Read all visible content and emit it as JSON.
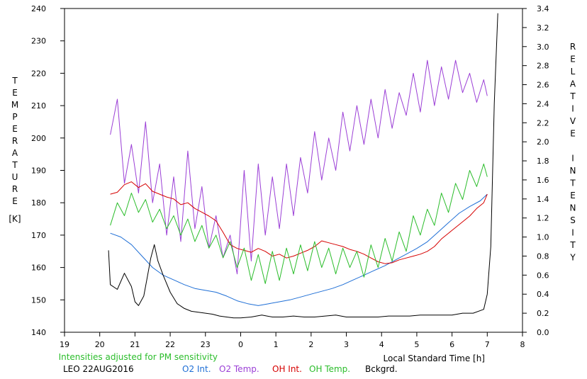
{
  "chart_data": {
    "type": "line",
    "title": "",
    "station_date": "LEO 22AUG2016",
    "note": "Intensities adjusted for PM sensitivity",
    "xlabel": "Local Standard Time [h]",
    "ylabel_left": "TEMPERATURE",
    "ylabel_left_unit": "[K]",
    "ylabel_right": "RELATIVE INTENSITY",
    "x_ticks": [
      "19",
      "20",
      "21",
      "22",
      "23",
      "0",
      "1",
      "2",
      "3",
      "4",
      "5",
      "6",
      "7",
      "8"
    ],
    "x_range": [
      19,
      32
    ],
    "y_left_range": [
      140,
      240
    ],
    "y_left_ticks": [
      "140",
      "150",
      "160",
      "170",
      "180",
      "190",
      "200",
      "210",
      "220",
      "230",
      "240"
    ],
    "y_right_range": [
      0.0,
      3.4
    ],
    "y_right_ticks": [
      "0.0",
      "0.2",
      "0.4",
      "0.6",
      "0.8",
      "1.0",
      "1.2",
      "1.4",
      "1.6",
      "1.8",
      "2.0",
      "2.2",
      "2.4",
      "2.6",
      "2.8",
      "3.0",
      "3.2",
      "3.4"
    ],
    "grid": false,
    "legend_placement": "bottom",
    "series": [
      {
        "name": "O2 Int.",
        "color": "#1f6fd6",
        "axis": "right",
        "points": [
          [
            20.3,
            1.04
          ],
          [
            20.6,
            1.0
          ],
          [
            20.9,
            0.92
          ],
          [
            21.2,
            0.8
          ],
          [
            21.5,
            0.68
          ],
          [
            21.8,
            0.6
          ],
          [
            22.1,
            0.55
          ],
          [
            22.4,
            0.5
          ],
          [
            22.7,
            0.46
          ],
          [
            23.0,
            0.44
          ],
          [
            23.3,
            0.42
          ],
          [
            23.6,
            0.38
          ],
          [
            23.9,
            0.33
          ],
          [
            24.2,
            0.3
          ],
          [
            24.5,
            0.28
          ],
          [
            24.8,
            0.3
          ],
          [
            25.1,
            0.32
          ],
          [
            25.4,
            0.34
          ],
          [
            25.7,
            0.37
          ],
          [
            26.0,
            0.4
          ],
          [
            26.3,
            0.43
          ],
          [
            26.6,
            0.46
          ],
          [
            26.9,
            0.5
          ],
          [
            27.2,
            0.55
          ],
          [
            27.5,
            0.6
          ],
          [
            27.8,
            0.65
          ],
          [
            28.1,
            0.7
          ],
          [
            28.4,
            0.76
          ],
          [
            28.7,
            0.82
          ],
          [
            29.0,
            0.88
          ],
          [
            29.3,
            0.95
          ],
          [
            29.6,
            1.05
          ],
          [
            29.9,
            1.15
          ],
          [
            30.2,
            1.25
          ],
          [
            30.5,
            1.32
          ],
          [
            30.8,
            1.38
          ],
          [
            31.0,
            1.45
          ]
        ]
      },
      {
        "name": "O2 Temp.",
        "color": "#9b3fd6",
        "axis": "left",
        "points": [
          [
            20.3,
            201
          ],
          [
            20.5,
            212
          ],
          [
            20.7,
            186
          ],
          [
            20.9,
            198
          ],
          [
            21.1,
            183
          ],
          [
            21.3,
            205
          ],
          [
            21.5,
            180
          ],
          [
            21.7,
            192
          ],
          [
            21.9,
            170
          ],
          [
            22.1,
            188
          ],
          [
            22.3,
            168
          ],
          [
            22.5,
            196
          ],
          [
            22.7,
            172
          ],
          [
            22.9,
            185
          ],
          [
            23.1,
            166
          ],
          [
            23.3,
            176
          ],
          [
            23.5,
            163
          ],
          [
            23.7,
            170
          ],
          [
            23.9,
            158
          ],
          [
            24.1,
            190
          ],
          [
            24.3,
            162
          ],
          [
            24.5,
            192
          ],
          [
            24.7,
            170
          ],
          [
            24.9,
            188
          ],
          [
            25.1,
            172
          ],
          [
            25.3,
            192
          ],
          [
            25.5,
            176
          ],
          [
            25.7,
            194
          ],
          [
            25.9,
            183
          ],
          [
            26.1,
            202
          ],
          [
            26.3,
            187
          ],
          [
            26.5,
            200
          ],
          [
            26.7,
            190
          ],
          [
            26.9,
            208
          ],
          [
            27.1,
            196
          ],
          [
            27.3,
            210
          ],
          [
            27.5,
            198
          ],
          [
            27.7,
            212
          ],
          [
            27.9,
            200
          ],
          [
            28.1,
            215
          ],
          [
            28.3,
            203
          ],
          [
            28.5,
            214
          ],
          [
            28.7,
            207
          ],
          [
            28.9,
            220
          ],
          [
            29.1,
            208
          ],
          [
            29.3,
            224
          ],
          [
            29.5,
            210
          ],
          [
            29.7,
            222
          ],
          [
            29.9,
            212
          ],
          [
            30.1,
            224
          ],
          [
            30.3,
            214
          ],
          [
            30.5,
            220
          ],
          [
            30.7,
            211
          ],
          [
            30.9,
            218
          ],
          [
            31.0,
            213
          ]
        ]
      },
      {
        "name": "OH Int.",
        "color": "#d60000",
        "axis": "right",
        "points": [
          [
            20.3,
            1.45
          ],
          [
            20.5,
            1.47
          ],
          [
            20.7,
            1.55
          ],
          [
            20.9,
            1.58
          ],
          [
            21.1,
            1.52
          ],
          [
            21.3,
            1.56
          ],
          [
            21.5,
            1.48
          ],
          [
            21.7,
            1.45
          ],
          [
            21.9,
            1.42
          ],
          [
            22.1,
            1.4
          ],
          [
            22.3,
            1.34
          ],
          [
            22.5,
            1.36
          ],
          [
            22.7,
            1.3
          ],
          [
            22.9,
            1.26
          ],
          [
            23.1,
            1.22
          ],
          [
            23.3,
            1.17
          ],
          [
            23.5,
            1.05
          ],
          [
            23.7,
            0.92
          ],
          [
            23.9,
            0.88
          ],
          [
            24.1,
            0.86
          ],
          [
            24.3,
            0.84
          ],
          [
            24.5,
            0.88
          ],
          [
            24.7,
            0.85
          ],
          [
            24.9,
            0.8
          ],
          [
            25.1,
            0.82
          ],
          [
            25.3,
            0.78
          ],
          [
            25.5,
            0.8
          ],
          [
            25.7,
            0.83
          ],
          [
            25.9,
            0.86
          ],
          [
            26.1,
            0.9
          ],
          [
            26.3,
            0.96
          ],
          [
            26.5,
            0.94
          ],
          [
            26.7,
            0.92
          ],
          [
            26.9,
            0.9
          ],
          [
            27.1,
            0.87
          ],
          [
            27.3,
            0.85
          ],
          [
            27.5,
            0.82
          ],
          [
            27.7,
            0.78
          ],
          [
            27.9,
            0.74
          ],
          [
            28.1,
            0.72
          ],
          [
            28.3,
            0.73
          ],
          [
            28.5,
            0.76
          ],
          [
            28.7,
            0.78
          ],
          [
            28.9,
            0.8
          ],
          [
            29.1,
            0.82
          ],
          [
            29.3,
            0.85
          ],
          [
            29.5,
            0.9
          ],
          [
            29.7,
            0.98
          ],
          [
            29.9,
            1.04
          ],
          [
            30.1,
            1.1
          ],
          [
            30.3,
            1.16
          ],
          [
            30.5,
            1.22
          ],
          [
            30.7,
            1.3
          ],
          [
            30.9,
            1.36
          ],
          [
            31.0,
            1.45
          ]
        ]
      },
      {
        "name": "OH Temp.",
        "color": "#2bbd2b",
        "axis": "left",
        "points": [
          [
            20.3,
            173
          ],
          [
            20.5,
            180
          ],
          [
            20.7,
            176
          ],
          [
            20.9,
            183
          ],
          [
            21.1,
            177
          ],
          [
            21.3,
            181
          ],
          [
            21.5,
            174
          ],
          [
            21.7,
            178
          ],
          [
            21.9,
            172
          ],
          [
            22.1,
            176
          ],
          [
            22.3,
            170
          ],
          [
            22.5,
            175
          ],
          [
            22.7,
            168
          ],
          [
            22.9,
            173
          ],
          [
            23.1,
            166
          ],
          [
            23.3,
            170
          ],
          [
            23.5,
            163
          ],
          [
            23.7,
            168
          ],
          [
            23.9,
            160
          ],
          [
            24.1,
            166
          ],
          [
            24.3,
            156
          ],
          [
            24.5,
            164
          ],
          [
            24.7,
            155
          ],
          [
            24.9,
            165
          ],
          [
            25.1,
            156
          ],
          [
            25.3,
            166
          ],
          [
            25.5,
            158
          ],
          [
            25.7,
            167
          ],
          [
            25.9,
            159
          ],
          [
            26.1,
            168
          ],
          [
            26.3,
            160
          ],
          [
            26.5,
            166
          ],
          [
            26.7,
            158
          ],
          [
            26.9,
            166
          ],
          [
            27.1,
            160
          ],
          [
            27.3,
            165
          ],
          [
            27.5,
            157
          ],
          [
            27.7,
            167
          ],
          [
            27.9,
            160
          ],
          [
            28.1,
            169
          ],
          [
            28.3,
            162
          ],
          [
            28.5,
            171
          ],
          [
            28.7,
            165
          ],
          [
            28.9,
            176
          ],
          [
            29.1,
            170
          ],
          [
            29.3,
            178
          ],
          [
            29.5,
            173
          ],
          [
            29.7,
            183
          ],
          [
            29.9,
            177
          ],
          [
            30.1,
            186
          ],
          [
            30.3,
            181
          ],
          [
            30.5,
            190
          ],
          [
            30.7,
            185
          ],
          [
            30.9,
            192
          ],
          [
            31.0,
            188
          ]
        ]
      },
      {
        "name": "Bckgrd.",
        "color": "#000000",
        "axis": "right",
        "points": [
          [
            20.25,
            0.86
          ],
          [
            20.3,
            0.5
          ],
          [
            20.5,
            0.45
          ],
          [
            20.7,
            0.62
          ],
          [
            20.9,
            0.48
          ],
          [
            21.0,
            0.32
          ],
          [
            21.1,
            0.28
          ],
          [
            21.25,
            0.38
          ],
          [
            21.35,
            0.58
          ],
          [
            21.45,
            0.78
          ],
          [
            21.55,
            0.92
          ],
          [
            21.65,
            0.75
          ],
          [
            21.8,
            0.6
          ],
          [
            22.0,
            0.42
          ],
          [
            22.2,
            0.3
          ],
          [
            22.4,
            0.25
          ],
          [
            22.6,
            0.22
          ],
          [
            22.8,
            0.21
          ],
          [
            23.0,
            0.2
          ],
          [
            23.2,
            0.19
          ],
          [
            23.4,
            0.17
          ],
          [
            23.6,
            0.16
          ],
          [
            23.8,
            0.15
          ],
          [
            24.0,
            0.15
          ],
          [
            24.3,
            0.16
          ],
          [
            24.6,
            0.18
          ],
          [
            24.9,
            0.16
          ],
          [
            25.2,
            0.16
          ],
          [
            25.5,
            0.17
          ],
          [
            25.8,
            0.16
          ],
          [
            26.1,
            0.16
          ],
          [
            26.4,
            0.17
          ],
          [
            26.7,
            0.18
          ],
          [
            27.0,
            0.16
          ],
          [
            27.3,
            0.16
          ],
          [
            27.6,
            0.16
          ],
          [
            27.9,
            0.16
          ],
          [
            28.2,
            0.17
          ],
          [
            28.5,
            0.17
          ],
          [
            28.8,
            0.17
          ],
          [
            29.1,
            0.18
          ],
          [
            29.4,
            0.18
          ],
          [
            29.7,
            0.18
          ],
          [
            30.0,
            0.18
          ],
          [
            30.3,
            0.2
          ],
          [
            30.6,
            0.2
          ],
          [
            30.9,
            0.24
          ],
          [
            31.0,
            0.4
          ],
          [
            31.1,
            0.9
          ],
          [
            31.2,
            2.4
          ],
          [
            31.3,
            3.35
          ]
        ]
      }
    ]
  }
}
